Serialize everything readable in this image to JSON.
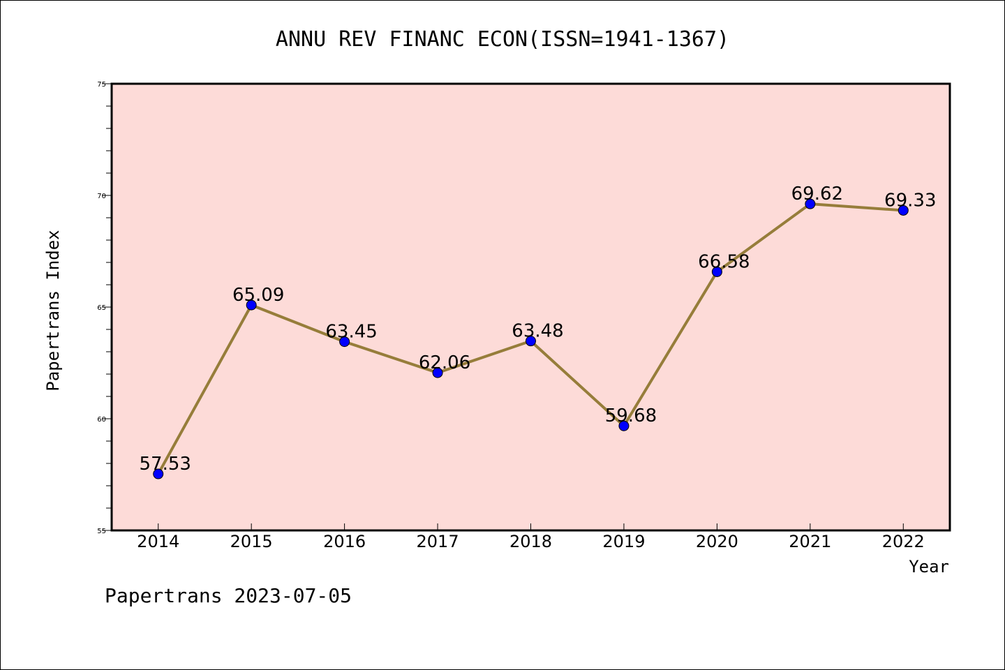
{
  "chart_data": {
    "type": "line",
    "title": "ANNU REV FINANC ECON(ISSN=1941-1367)",
    "xlabel": "Year",
    "ylabel": "Papertrans Index",
    "categories": [
      "2014",
      "2015",
      "2016",
      "2017",
      "2018",
      "2019",
      "2020",
      "2021",
      "2022"
    ],
    "series": [
      {
        "values": [
          57.53,
          65.09,
          63.45,
          62.06,
          63.48,
          59.68,
          66.58,
          69.62,
          69.33
        ],
        "labels": [
          "57.53",
          "65.09",
          "63.45",
          "62.06",
          "63.48",
          "59.68",
          "66.58",
          "69.62",
          "69.33"
        ]
      }
    ],
    "ylim": [
      55,
      75
    ],
    "yticks": [
      "55",
      "60",
      "65",
      "70",
      "75"
    ],
    "grid": false,
    "colors": {
      "plot_background": "#fddbd8",
      "line": "#967d3a",
      "marker": "#0000ff"
    }
  },
  "footer": "Papertrans 2023-07-05"
}
